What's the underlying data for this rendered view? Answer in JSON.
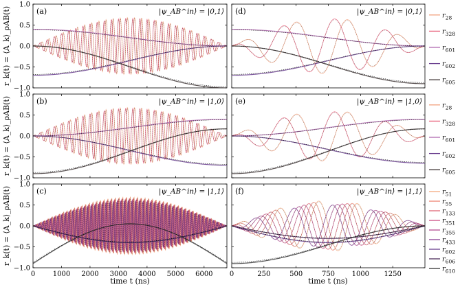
{
  "figure": {
    "xlabel": "time t (ns)",
    "ylabel": "r_k(t) = ⟨A_k⟩_ρAB(t)"
  },
  "colors": {
    "r28": "#f2a07c",
    "r328": "#e8607a",
    "r601": "#b069b0",
    "r602": "#6a3f8f",
    "r605": "#3a3030",
    "r51": "#f5a97e",
    "r55": "#ee8472",
    "r133": "#e06676",
    "r351": "#cc4f84",
    "r355": "#b34c92",
    "r433": "#8a3f95",
    "r606": "#4f2f5c",
    "r610": "#333333",
    "target": "#000000"
  },
  "chart_data": [
    {
      "panel": "(a)",
      "type": "line",
      "state": "|ψ_AB^in⟩ = |0,1⟩",
      "xlim": [
        0,
        6800
      ],
      "ylim": [
        -1.0,
        1.0
      ],
      "xticks": [
        "0",
        "1000",
        "2000",
        "3000",
        "4000",
        "5000",
        "6000"
      ],
      "yticks": [
        "1.0",
        "0.5",
        "0.0",
        "-0.5",
        "-1.0"
      ],
      "series": [
        {
          "name": "r28",
          "kind": "osc",
          "base": 0.0,
          "amp": 0.68,
          "period_ns": 250
        },
        {
          "name": "r328",
          "kind": "osc",
          "base": 0.0,
          "amp": 0.66,
          "period_ns": 250,
          "phase": 1.57
        },
        {
          "name": "r601",
          "kind": "smooth",
          "start": 0.4,
          "end": 0.0
        },
        {
          "name": "r602",
          "kind": "smooth",
          "start": -0.7,
          "end": 0.0
        },
        {
          "name": "r605",
          "kind": "smooth",
          "start": 0.0,
          "end": -1.0
        }
      ]
    },
    {
      "panel": "(d)",
      "type": "line",
      "state": "|ψ_AB^in⟩ = |0,1⟩",
      "xlim": [
        0,
        1500
      ],
      "ylim": [
        -1.0,
        1.0
      ],
      "xticks": [
        "0",
        "250",
        "500",
        "750",
        "1000",
        "1250"
      ],
      "yticks": [
        "1.0",
        "0.5",
        "0.0",
        "-0.5",
        "-1.0"
      ],
      "legend": [
        "r28",
        "r328",
        "r601",
        "r602",
        "r605"
      ],
      "series": [
        {
          "name": "r28",
          "kind": "osc",
          "base": 0.0,
          "amp": 0.66,
          "period_ns": 400
        },
        {
          "name": "r328",
          "kind": "osc",
          "base": 0.0,
          "amp": 0.65,
          "period_ns": 400,
          "phase": 1.57
        },
        {
          "name": "r601",
          "kind": "smooth",
          "start": 0.4,
          "end": 0.0
        },
        {
          "name": "r602",
          "kind": "smooth",
          "start": -0.7,
          "end": 0.0
        },
        {
          "name": "r605",
          "kind": "smooth",
          "start": 0.0,
          "end": -0.9
        }
      ]
    },
    {
      "panel": "(b)",
      "type": "line",
      "state": "|ψ_AB^in⟩ = |1,0⟩",
      "xlim": [
        0,
        6800
      ],
      "ylim": [
        -1.0,
        1.0
      ],
      "xticks": [
        "0",
        "1000",
        "2000",
        "3000",
        "4000",
        "5000",
        "6000"
      ],
      "yticks": [
        "1.0",
        "0.5",
        "0.0",
        "-0.5",
        "-1.0"
      ],
      "series": [
        {
          "name": "r28",
          "kind": "osc",
          "base": 0.0,
          "amp": 0.68,
          "period_ns": 250
        },
        {
          "name": "r328",
          "kind": "osc",
          "base": 0.0,
          "amp": 0.66,
          "period_ns": 250,
          "phase": 1.57
        },
        {
          "name": "r601",
          "kind": "smooth",
          "start": 0.0,
          "end": 0.4
        },
        {
          "name": "r602",
          "kind": "smooth",
          "start": 0.0,
          "end": -0.7
        },
        {
          "name": "r605",
          "kind": "smooth",
          "start": -0.9,
          "end": 0.17
        }
      ]
    },
    {
      "panel": "(e)",
      "type": "line",
      "state": "|ψ_AB^in⟩ = |1,0⟩",
      "xlim": [
        0,
        1500
      ],
      "ylim": [
        -1.0,
        1.0
      ],
      "xticks": [
        "0",
        "250",
        "500",
        "750",
        "1000",
        "1250"
      ],
      "yticks": [
        "1.0",
        "0.5",
        "0.0",
        "-0.5",
        "-1.0"
      ],
      "legend": [
        "r28",
        "r328",
        "r601",
        "r602",
        "r605"
      ],
      "series": [
        {
          "name": "r28",
          "kind": "osc",
          "base": 0.0,
          "amp": 0.6,
          "period_ns": 400
        },
        {
          "name": "r328",
          "kind": "osc",
          "base": 0.0,
          "amp": 0.58,
          "period_ns": 400,
          "phase": 1.57
        },
        {
          "name": "r601",
          "kind": "smooth",
          "start": 0.0,
          "end": 0.4
        },
        {
          "name": "r602",
          "kind": "smooth",
          "start": 0.0,
          "end": -0.65
        },
        {
          "name": "r605",
          "kind": "smooth",
          "start": -0.9,
          "end": 0.17
        }
      ]
    },
    {
      "panel": "(c)",
      "type": "line",
      "state": "|ψ_AB^in⟩ = |1,1⟩",
      "xlim": [
        0,
        6800
      ],
      "ylim": [
        -1.0,
        1.0
      ],
      "xticks": [
        "0",
        "1000",
        "2000",
        "3000",
        "4000",
        "5000",
        "6000"
      ],
      "yticks": [
        "1.0",
        "0.5",
        "0.0",
        "-0.5",
        "-1.0"
      ],
      "series": [
        {
          "name": "r51",
          "kind": "osc",
          "base": 0.0,
          "amp": 0.7,
          "period_ns": 130
        },
        {
          "name": "r55",
          "kind": "osc",
          "base": 0.0,
          "amp": 0.68,
          "period_ns": 130,
          "phase": 0.8
        },
        {
          "name": "r133",
          "kind": "osc",
          "base": 0.0,
          "amp": 0.66,
          "period_ns": 130,
          "phase": 1.6
        },
        {
          "name": "r351",
          "kind": "osc",
          "base": 0.0,
          "amp": 0.64,
          "period_ns": 130,
          "phase": 2.4
        },
        {
          "name": "r355",
          "kind": "osc",
          "base": 0.0,
          "amp": 0.62,
          "period_ns": 130,
          "phase": 3.2
        },
        {
          "name": "r433",
          "kind": "osc",
          "base": 0.0,
          "amp": 0.6,
          "period_ns": 130,
          "phase": 4.0
        },
        {
          "name": "r602",
          "kind": "arch",
          "start": 0.0,
          "mid": -0.4,
          "end": 0.0
        },
        {
          "name": "r606",
          "kind": "arch",
          "start": 0.0,
          "mid": -0.4,
          "end": 0.0
        },
        {
          "name": "r610",
          "kind": "smooth",
          "start": -0.9,
          "end": -0.9,
          "bump": 0.95
        }
      ]
    },
    {
      "panel": "(f)",
      "type": "line",
      "state": "|ψ_AB^in⟩ = |1,1⟩",
      "xlim": [
        0,
        1500
      ],
      "ylim": [
        -1.0,
        1.0
      ],
      "xticks": [
        "0",
        "250",
        "500",
        "750",
        "1000",
        "1250"
      ],
      "yticks": [
        "1.0",
        "0.5",
        "0.0",
        "-0.5",
        "-1.0"
      ],
      "legend": [
        "r51",
        "r55",
        "r133",
        "r351",
        "r355",
        "r433",
        "r602",
        "r606",
        "r610"
      ],
      "series": [
        {
          "name": "r51",
          "kind": "osc",
          "base": 0.0,
          "amp": 0.6,
          "period_ns": 300
        },
        {
          "name": "r55",
          "kind": "osc",
          "base": 0.0,
          "amp": 0.58,
          "period_ns": 300,
          "phase": 0.8
        },
        {
          "name": "r133",
          "kind": "osc",
          "base": 0.0,
          "amp": 0.56,
          "period_ns": 300,
          "phase": 1.6
        },
        {
          "name": "r351",
          "kind": "osc",
          "base": 0.0,
          "amp": 0.54,
          "period_ns": 300,
          "phase": 2.4
        },
        {
          "name": "r355",
          "kind": "osc",
          "base": 0.0,
          "amp": 0.52,
          "period_ns": 300,
          "phase": 3.2
        },
        {
          "name": "r433",
          "kind": "osc",
          "base": 0.0,
          "amp": 0.5,
          "period_ns": 300,
          "phase": 4.0
        },
        {
          "name": "r602",
          "kind": "arch",
          "start": 0.0,
          "mid": -0.4,
          "end": 0.0
        },
        {
          "name": "r606",
          "kind": "arch",
          "start": 0.0,
          "mid": -0.3,
          "end": 0.0
        },
        {
          "name": "r610",
          "kind": "smooth",
          "start": -0.9,
          "end": 0.0
        }
      ]
    }
  ],
  "legends": [
    {
      "panel": "(d)",
      "entries": [
        {
          "key": "r28",
          "label": "r",
          "sub": "28"
        },
        {
          "key": "r328",
          "label": "r",
          "sub": "328"
        },
        {
          "key": "r601",
          "label": "r",
          "sub": "601"
        },
        {
          "key": "r602",
          "label": "r",
          "sub": "602"
        },
        {
          "key": "r605",
          "label": "r",
          "sub": "605"
        }
      ]
    },
    {
      "panel": "(e)",
      "entries": [
        {
          "key": "r28",
          "label": "r",
          "sub": "28"
        },
        {
          "key": "r328",
          "label": "r",
          "sub": "328"
        },
        {
          "key": "r601",
          "label": "r",
          "sub": "601"
        },
        {
          "key": "r602",
          "label": "r",
          "sub": "602"
        },
        {
          "key": "r605",
          "label": "r",
          "sub": "605"
        }
      ]
    },
    {
      "panel": "(f)",
      "entries": [
        {
          "key": "r51",
          "label": "r",
          "sub": "51"
        },
        {
          "key": "r55",
          "label": "r",
          "sub": "55"
        },
        {
          "key": "r133",
          "label": "r",
          "sub": "133"
        },
        {
          "key": "r351",
          "label": "r",
          "sub": "351"
        },
        {
          "key": "r355",
          "label": "r",
          "sub": "355"
        },
        {
          "key": "r433",
          "label": "r",
          "sub": "433"
        },
        {
          "key": "r602",
          "label": "r",
          "sub": "602"
        },
        {
          "key": "r606",
          "label": "r",
          "sub": "606"
        },
        {
          "key": "r610",
          "label": "r",
          "sub": "610"
        }
      ]
    }
  ]
}
